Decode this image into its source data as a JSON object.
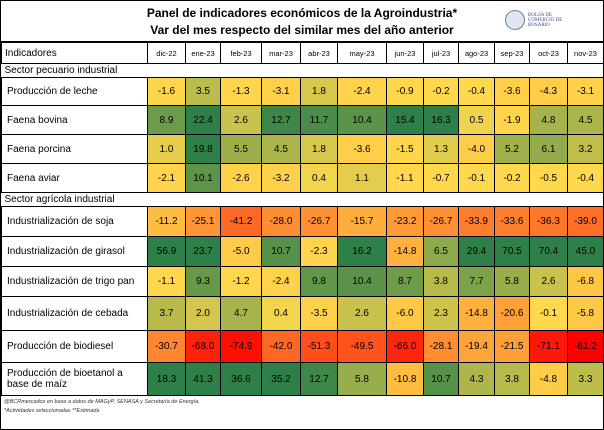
{
  "header": {
    "title": "Panel de indicadores económicos de la Agroindustria*",
    "subtitle": "Var del mes respecto del similar mes del año anterior",
    "logo_text": "BOLSA DE COMERCIO DE ROSARIO"
  },
  "chart_data": {
    "type": "heatmap",
    "row_header": "Indicadores",
    "columns": [
      "dic-22",
      "ene-23",
      "feb-23",
      "mar-23",
      "abr-23",
      "may-23",
      "jun-23",
      "jul-23",
      "ago-23",
      "sep-23",
      "oct-23",
      "nov-23"
    ],
    "colors": {
      "negative_max": "#ff0000",
      "mid": "#ffd94d",
      "positive_max": "#2e8048"
    },
    "sections": [
      {
        "name": "Sector pecuario industrial",
        "rows": [
          {
            "label": "Producción de leche",
            "values": [
              -1.6,
              3.5,
              -1.3,
              -3.1,
              1.8,
              -2.4,
              -0.9,
              -0.2,
              -0.4,
              -3.6,
              -4.3,
              -3.1
            ]
          },
          {
            "label": "Faena bovina",
            "values": [
              8.9,
              22.4,
              2.6,
              12.7,
              11.7,
              10.4,
              15.4,
              16.3,
              0.5,
              -1.9,
              4.8,
              4.5
            ]
          },
          {
            "label": "Faena porcina",
            "values": [
              1.0,
              19.8,
              5.5,
              4.5,
              1.8,
              -3.6,
              -1.5,
              1.3,
              -4.0,
              5.2,
              6.1,
              3.2
            ]
          },
          {
            "label": "Faena aviar",
            "values": [
              -2.1,
              10.1,
              -2.6,
              -3.2,
              0.4,
              1.1,
              -1.1,
              -0.7,
              -0.1,
              -0.2,
              -0.5,
              -0.4
            ]
          }
        ]
      },
      {
        "name": "Sector agrícola industrial",
        "rows": [
          {
            "label": "Industrialización de soja",
            "values": [
              -11.2,
              -25.1,
              -41.2,
              -28.0,
              -26.7,
              -15.7,
              -23.2,
              -26.7,
              -33.9,
              -33.6,
              -36.3,
              -39.0
            ]
          },
          {
            "label": "Industrialización de girasol",
            "values": [
              56.9,
              23.7,
              -5.0,
              10.7,
              -2.3,
              16.2,
              -14.8,
              6.5,
              29.4,
              70.5,
              70.4,
              45.0
            ]
          },
          {
            "label": "Industrialización de trigo pan",
            "values": [
              -1.1,
              9.3,
              -1.2,
              -2.4,
              9.8,
              10.4,
              8.7,
              3.8,
              7.7,
              5.8,
              2.6,
              -6.8
            ]
          },
          {
            "label": "Industrialización de cebada",
            "values": [
              3.7,
              2.0,
              4.7,
              0.4,
              -3.5,
              2.6,
              -6.0,
              2.3,
              -14.8,
              -20.6,
              -0.1,
              -5.8
            ]
          },
          {
            "label": "Producción de biodiesel",
            "values": [
              -30.7,
              -68.0,
              -74.9,
              -42.0,
              -51.3,
              -49.5,
              -66.0,
              -28.1,
              -19.4,
              -21.5,
              -71.1,
              -81.2
            ]
          },
          {
            "label": "Producción de bioetanol a base de maíz",
            "values": [
              18.3,
              41.3,
              36.6,
              35.2,
              12.7,
              5.8,
              -10.8,
              10.7,
              4.3,
              3.8,
              -4.8,
              3.3
            ]
          }
        ]
      }
    ]
  },
  "footer": {
    "source": "@BCRmercados en base a datos de MAGyP, SENASA y Secretaría de Energía.",
    "notes": "*Actividades seleccionadas  **Estimada"
  }
}
